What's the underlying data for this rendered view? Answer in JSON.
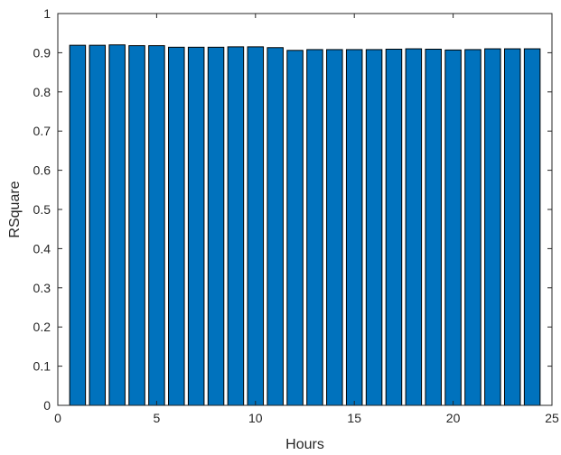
{
  "chart_data": {
    "type": "bar",
    "title": "",
    "xlabel": "Hours",
    "ylabel": "RSquare",
    "x": [
      1,
      2,
      3,
      4,
      5,
      6,
      7,
      8,
      9,
      10,
      11,
      12,
      13,
      14,
      15,
      16,
      17,
      18,
      19,
      20,
      21,
      22,
      23,
      24
    ],
    "values": [
      0.919,
      0.919,
      0.92,
      0.918,
      0.918,
      0.914,
      0.914,
      0.914,
      0.915,
      0.915,
      0.913,
      0.906,
      0.908,
      0.908,
      0.908,
      0.908,
      0.909,
      0.91,
      0.909,
      0.907,
      0.908,
      0.91,
      0.91,
      0.91
    ],
    "xlim": [
      0,
      25
    ],
    "ylim": [
      0,
      1
    ],
    "xticks": [
      0,
      5,
      10,
      15,
      20,
      25
    ],
    "yticks": [
      0,
      0.1,
      0.2,
      0.3,
      0.4,
      0.5,
      0.6,
      0.7,
      0.8,
      0.9,
      1
    ],
    "xtick_labels": [
      "0",
      "5",
      "10",
      "15",
      "20",
      "25"
    ],
    "ytick_labels": [
      "0",
      "0.1",
      "0.2",
      "0.3",
      "0.4",
      "0.5",
      "0.6",
      "0.7",
      "0.8",
      "0.9",
      "1"
    ],
    "bar_color": "#0072BD",
    "grid": false,
    "legend": "none"
  }
}
